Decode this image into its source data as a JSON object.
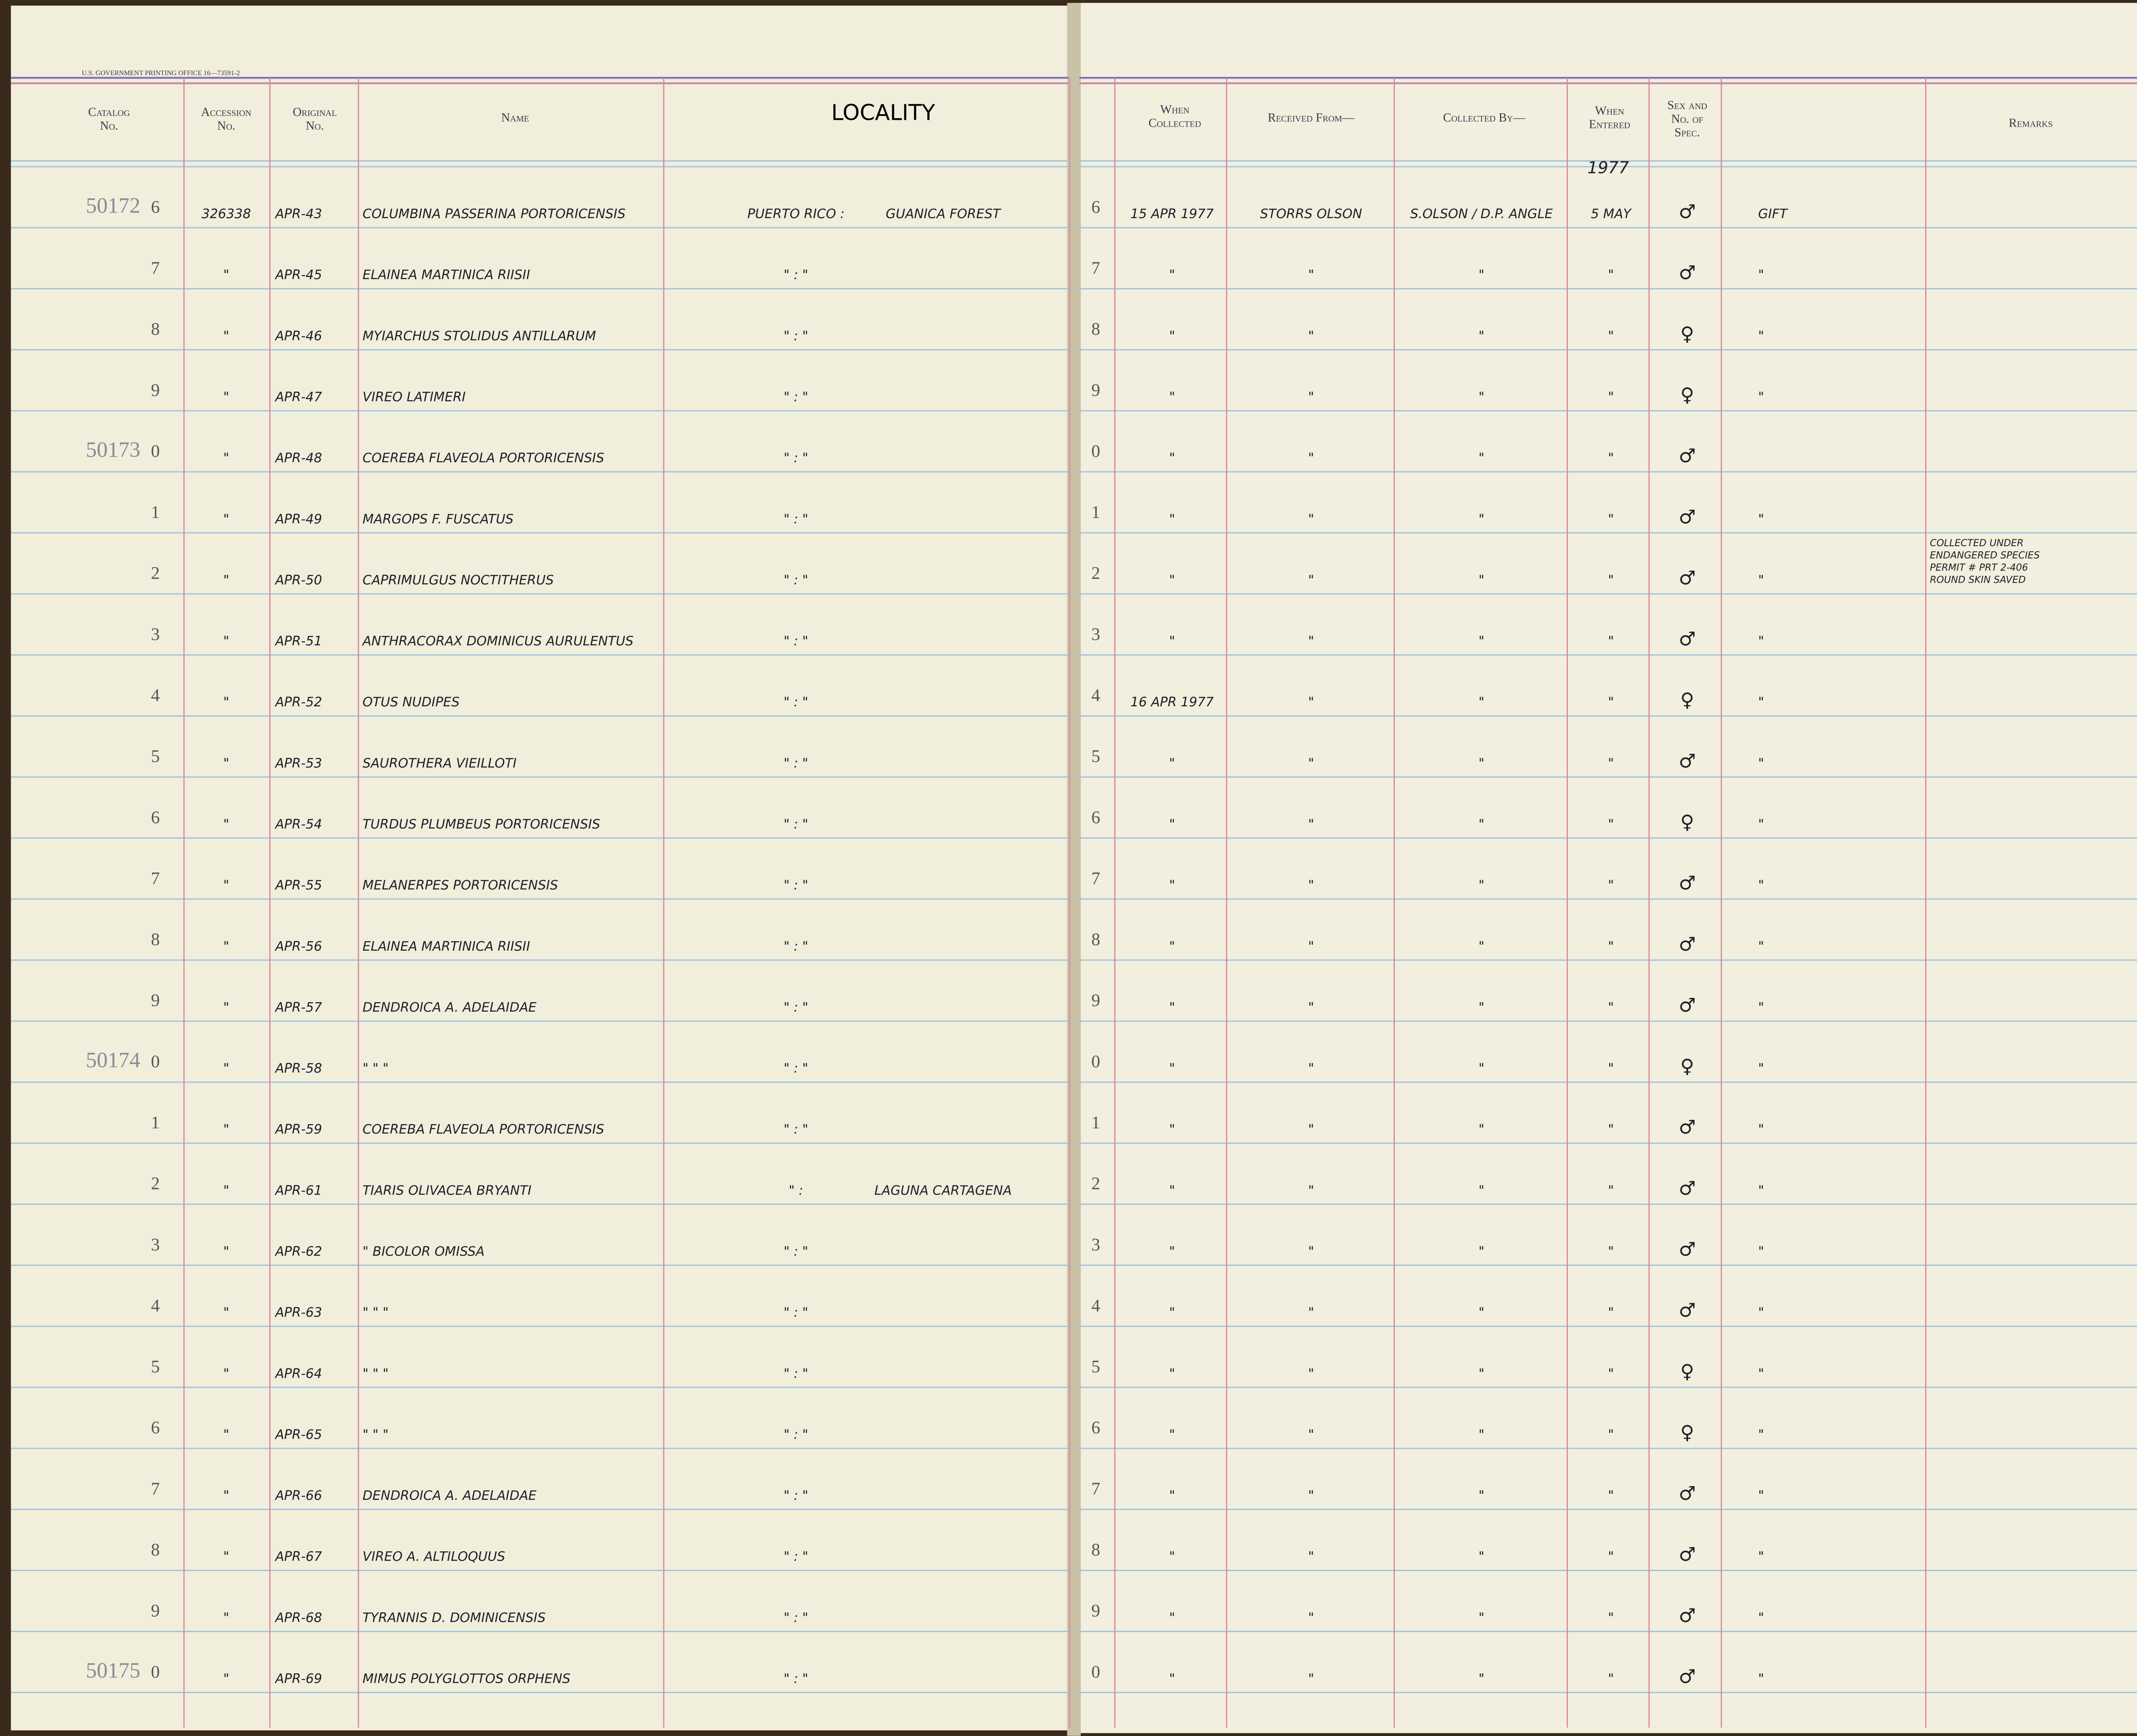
{
  "header": {
    "printer": "U.S. GOVERNMENT PRINTING OFFICE   16—73591-2",
    "catalog": [
      "Catalog",
      "No."
    ],
    "accession": [
      "Accession",
      "No."
    ],
    "original": [
      "Original",
      "No."
    ],
    "name": "Name",
    "locality": "LOCALITY",
    "when_collected": [
      "When",
      "Collected"
    ],
    "received_from": "Received From—",
    "collected_by": "Collected By—",
    "when_entered": [
      "When",
      "Entered"
    ],
    "sex": [
      "Sex and",
      "No. of",
      "Spec."
    ],
    "remarks": "Remarks",
    "year": "1977"
  },
  "rows": [
    {
      "catalog_prefix": "50172",
      "digit": "6",
      "accession": "326338",
      "original": "APR-43",
      "name": "COLUMBINA PASSERINA PORTORICENSIS",
      "locality": "PUERTO RICO :",
      "locality_2": "GUANICA FOREST",
      "collected": "15 APR 1977",
      "received_from": "STORRS OLSON",
      "collected_by": "S.OLSON / D.P. ANGLE",
      "entered": "5 MAY",
      "sex": "♂",
      "note": "GIFT"
    },
    {
      "digit": "7",
      "accession": "\"",
      "original": "APR-45",
      "name": "ELAINEA MARTINICA RIISII",
      "locality": "\"    :    \"",
      "collected": "\"",
      "received_from": "\"",
      "collected_by": "\"",
      "entered": "\"",
      "sex": "♂",
      "note": "\""
    },
    {
      "digit": "8",
      "accession": "\"",
      "original": "APR-46",
      "name": "MYIARCHUS STOLIDUS ANTILLARUM",
      "locality": "\"    :    \"",
      "collected": "\"",
      "received_from": "\"",
      "collected_by": "\"",
      "entered": "\"",
      "sex": "♀",
      "note": "\""
    },
    {
      "digit": "9",
      "accession": "\"",
      "original": "APR-47",
      "name": "VIREO LATIMERI",
      "locality": "\"    :    \"",
      "collected": "\"",
      "received_from": "\"",
      "collected_by": "\"",
      "entered": "\"",
      "sex": "♀",
      "note": "\""
    },
    {
      "catalog_prefix": "50173",
      "digit": "0",
      "accession": "\"",
      "original": "APR-48",
      "name": "COEREBA FLAVEOLA PORTORICENSIS",
      "locality": "\"    :    \"",
      "collected": "\"",
      "received_from": "\"",
      "collected_by": "\"",
      "entered": "\"",
      "sex": "♂"
    },
    {
      "digit": "1",
      "accession": "\"",
      "original": "APR-49",
      "name": "MARGOPS F. FUSCATUS",
      "locality": "\"    :    \"",
      "collected": "\"",
      "received_from": "\"",
      "collected_by": "\"",
      "entered": "\"",
      "sex": "♂",
      "note": "\""
    },
    {
      "digit": "2",
      "accession": "\"",
      "original": "APR-50",
      "name": "CAPRIMULGUS NOCTITHERUS",
      "locality": "\"    :    \"",
      "collected": "\"",
      "received_from": "\"",
      "collected_by": "\"",
      "entered": "\"",
      "sex": "♂",
      "note": "\"",
      "remarks": [
        "COLLECTED UNDER",
        "ENDANGERED SPECIES",
        "PERMIT # PRT 2-406",
        "ROUND SKIN SAVED"
      ]
    },
    {
      "digit": "3",
      "accession": "\"",
      "original": "APR-51",
      "name": "ANTHRACORAX DOMINICUS AURULENTUS",
      "locality": "\"    :    \"",
      "collected": "\"",
      "received_from": "\"",
      "collected_by": "\"",
      "entered": "\"",
      "sex": "♂",
      "note": "\""
    },
    {
      "digit": "4",
      "accession": "\"",
      "original": "APR-52",
      "name": "OTUS NUDIPES",
      "locality": "\"    :    \"",
      "collected": "16 APR 1977",
      "received_from": "\"",
      "collected_by": "\"",
      "entered": "\"",
      "sex": "♀",
      "note": "\""
    },
    {
      "digit": "5",
      "accession": "\"",
      "original": "APR-53",
      "name": "SAUROTHERA VIEILLOTI",
      "locality": "\"    :    \"",
      "collected": "\"",
      "received_from": "\"",
      "collected_by": "\"",
      "entered": "\"",
      "sex": "♂",
      "note": "\""
    },
    {
      "digit": "6",
      "accession": "\"",
      "original": "APR-54",
      "name": "TURDUS PLUMBEUS PORTORICENSIS",
      "locality": "\"    :    \"",
      "collected": "\"",
      "received_from": "\"",
      "collected_by": "\"",
      "entered": "\"",
      "sex": "♀",
      "note": "\""
    },
    {
      "digit": "7",
      "accession": "\"",
      "original": "APR-55",
      "name": "MELANERPES PORTORICENSIS",
      "locality": "\"    :    \"",
      "collected": "\"",
      "received_from": "\"",
      "collected_by": "\"",
      "entered": "\"",
      "sex": "♂",
      "note": "\""
    },
    {
      "digit": "8",
      "accession": "\"",
      "original": "APR-56",
      "name": "ELAINEA MARTINICA RIISII",
      "locality": "\"    :    \"",
      "collected": "\"",
      "received_from": "\"",
      "collected_by": "\"",
      "entered": "\"",
      "sex": "♂",
      "note": "\""
    },
    {
      "digit": "9",
      "accession": "\"",
      "original": "APR-57",
      "name": "DENDROICA A. ADELAIDAE",
      "locality": "\"    :    \"",
      "collected": "\"",
      "received_from": "\"",
      "collected_by": "\"",
      "entered": "\"",
      "sex": "♂",
      "note": "\""
    },
    {
      "catalog_prefix": "50174",
      "digit": "0",
      "accession": "\"",
      "original": "APR-58",
      "name": "\"      \"      \"",
      "locality": "\"    :    \"",
      "collected": "\"",
      "received_from": "\"",
      "collected_by": "\"",
      "entered": "\"",
      "sex": "♀",
      "note": "\""
    },
    {
      "digit": "1",
      "accession": "\"",
      "original": "APR-59",
      "name": "COEREBA FLAVEOLA PORTORICENSIS",
      "locality": "\"    :    \"",
      "collected": "\"",
      "received_from": "\"",
      "collected_by": "\"",
      "entered": "\"",
      "sex": "♂",
      "note": "\""
    },
    {
      "digit": "2",
      "accession": "\"",
      "original": "APR-61",
      "name": "TIARIS OLIVACEA BRYANTI",
      "locality": "\"    :",
      "locality_2": "LAGUNA CARTAGENA",
      "collected": "\"",
      "received_from": "\"",
      "collected_by": "\"",
      "entered": "\"",
      "sex": "♂",
      "note": "\""
    },
    {
      "digit": "3",
      "accession": "\"",
      "original": "APR-62",
      "name": "\"     BICOLOR OMISSA",
      "locality": "\"    :    \"",
      "collected": "\"",
      "received_from": "\"",
      "collected_by": "\"",
      "entered": "\"",
      "sex": "♂",
      "note": "\""
    },
    {
      "digit": "4",
      "accession": "\"",
      "original": "APR-63",
      "name": "\"      \"      \"",
      "locality": "\"    :    \"",
      "collected": "\"",
      "received_from": "\"",
      "collected_by": "\"",
      "entered": "\"",
      "sex": "♂",
      "note": "\""
    },
    {
      "digit": "5",
      "accession": "\"",
      "original": "APR-64",
      "name": "\"      \"      \"",
      "locality": "\"    :    \"",
      "collected": "\"",
      "received_from": "\"",
      "collected_by": "\"",
      "entered": "\"",
      "sex": "♀",
      "note": "\""
    },
    {
      "digit": "6",
      "accession": "\"",
      "original": "APR-65",
      "name": "\"      \"      \"",
      "locality": "\"    :    \"",
      "collected": "\"",
      "received_from": "\"",
      "collected_by": "\"",
      "entered": "\"",
      "sex": "♀",
      "note": "\""
    },
    {
      "digit": "7",
      "accession": "\"",
      "original": "APR-66",
      "name": "DENDROICA A. ADELAIDAE",
      "locality": "\"    :    \"",
      "collected": "\"",
      "received_from": "\"",
      "collected_by": "\"",
      "entered": "\"",
      "sex": "♂",
      "note": "\""
    },
    {
      "digit": "8",
      "accession": "\"",
      "original": "APR-67",
      "name": "VIREO A. ALTILOQUUS",
      "locality": "\"    :    \"",
      "collected": "\"",
      "received_from": "\"",
      "collected_by": "\"",
      "entered": "\"",
      "sex": "♂",
      "note": "\""
    },
    {
      "digit": "9",
      "accession": "\"",
      "original": "APR-68",
      "name": "TYRANNIS D. DOMINICENSIS",
      "locality": "\"    :    \"",
      "collected": "\"",
      "received_from": "\"",
      "collected_by": "\"",
      "entered": "\"",
      "sex": "♂",
      "note": "\""
    },
    {
      "catalog_prefix": "50175",
      "digit": "0",
      "accession": "\"",
      "original": "APR-69",
      "name": "MIMUS POLYGLOTTOS ORPHENS",
      "locality": "\"    :    \"",
      "collected": "\"",
      "received_from": "\"",
      "collected_by": "\"",
      "entered": "\"",
      "sex": "♂",
      "note": "\""
    }
  ]
}
